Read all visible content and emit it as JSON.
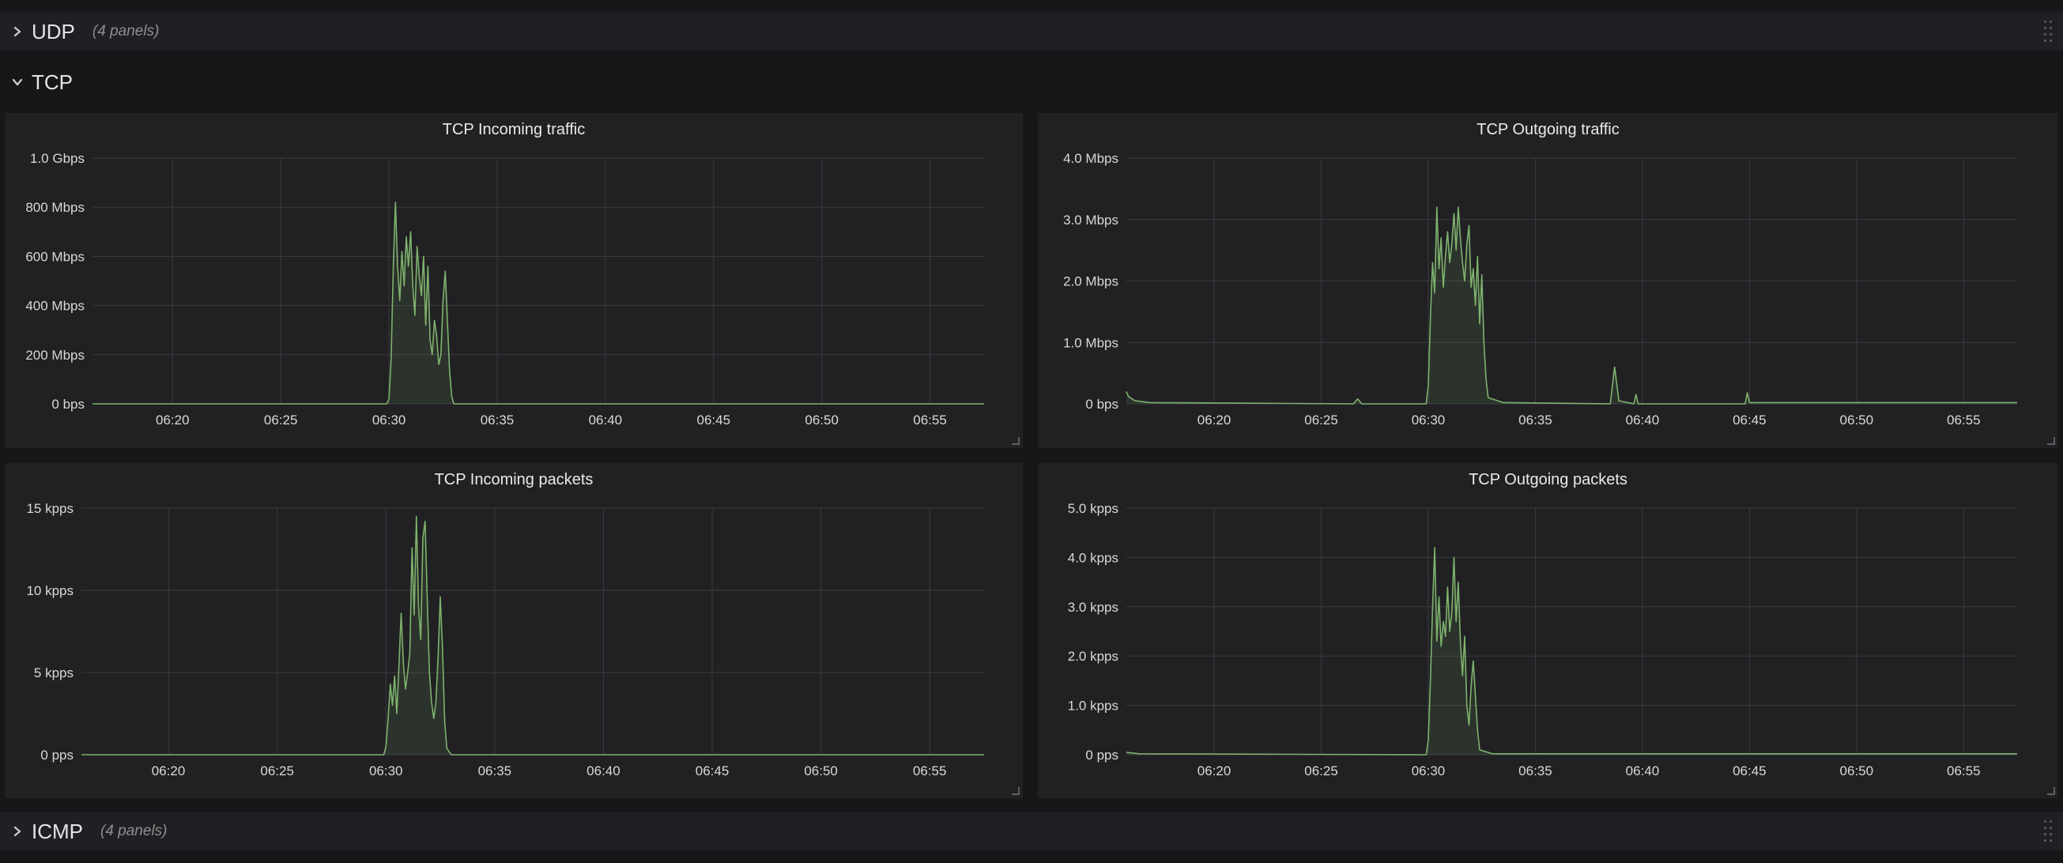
{
  "rows": {
    "udp": {
      "title": "UDP",
      "count": "(4 panels)",
      "collapsed": true
    },
    "tcp": {
      "title": "TCP",
      "collapsed": false
    },
    "icmp": {
      "title": "ICMP",
      "count": "(4 panels)",
      "collapsed": true
    }
  },
  "colors": {
    "series": "#7eb26d",
    "grid": "#3a3b3e",
    "axis_text": "#d8d9da"
  },
  "icons": {
    "collapsed": "chevron-right-icon",
    "expanded": "chevron-down-icon",
    "drag": "drag-handle-icon"
  },
  "chart_data": [
    {
      "id": "tcp-in-traffic",
      "type": "area",
      "title": "TCP Incoming traffic",
      "x_ticks": [
        "06:20",
        "06:25",
        "06:30",
        "06:35",
        "06:40",
        "06:45",
        "06:50",
        "06:55"
      ],
      "y_ticks": [
        "0 bps",
        "200 Mbps",
        "400 Mbps",
        "600 Mbps",
        "800 Mbps",
        "1.0 Gbps"
      ],
      "ylim": [
        0,
        1000
      ],
      "unit": "Mbps",
      "xlim_minutes": [
        16.3,
        57.5
      ],
      "series": [
        {
          "points": [
            [
              16.3,
              0
            ],
            [
              29.9,
              0
            ],
            [
              30.0,
              20
            ],
            [
              30.1,
              180
            ],
            [
              30.2,
              560
            ],
            [
              30.3,
              820
            ],
            [
              30.4,
              560
            ],
            [
              30.5,
              420
            ],
            [
              30.6,
              620
            ],
            [
              30.7,
              480
            ],
            [
              30.8,
              680
            ],
            [
              30.9,
              560
            ],
            [
              31.0,
              700
            ],
            [
              31.1,
              480
            ],
            [
              31.2,
              360
            ],
            [
              31.3,
              640
            ],
            [
              31.4,
              520
            ],
            [
              31.5,
              440
            ],
            [
              31.6,
              600
            ],
            [
              31.7,
              320
            ],
            [
              31.8,
              560
            ],
            [
              31.9,
              260
            ],
            [
              32.0,
              200
            ],
            [
              32.1,
              340
            ],
            [
              32.2,
              280
            ],
            [
              32.3,
              160
            ],
            [
              32.4,
              200
            ],
            [
              32.5,
              420
            ],
            [
              32.6,
              540
            ],
            [
              32.7,
              340
            ],
            [
              32.8,
              140
            ],
            [
              32.9,
              30
            ],
            [
              33.0,
              0
            ],
            [
              57.5,
              0
            ]
          ]
        }
      ]
    },
    {
      "id": "tcp-out-traffic",
      "type": "area",
      "title": "TCP Outgoing traffic",
      "x_ticks": [
        "06:20",
        "06:25",
        "06:30",
        "06:35",
        "06:40",
        "06:45",
        "06:50",
        "06:55"
      ],
      "y_ticks": [
        "0 bps",
        "1.0 Mbps",
        "2.0 Mbps",
        "3.0 Mbps",
        "4.0 Mbps"
      ],
      "ylim": [
        0,
        4
      ],
      "unit": "Mbps",
      "xlim_minutes": [
        15.9,
        57.5
      ],
      "series": [
        {
          "points": [
            [
              15.9,
              0.2
            ],
            [
              16.0,
              0.12
            ],
            [
              16.3,
              0.05
            ],
            [
              17.0,
              0.02
            ],
            [
              26.5,
              0.0
            ],
            [
              26.7,
              0.08
            ],
            [
              26.9,
              0.0
            ],
            [
              29.9,
              0.0
            ],
            [
              30.0,
              0.3
            ],
            [
              30.1,
              1.4
            ],
            [
              30.2,
              2.3
            ],
            [
              30.3,
              1.8
            ],
            [
              30.4,
              3.2
            ],
            [
              30.5,
              2.2
            ],
            [
              30.6,
              2.7
            ],
            [
              30.7,
              1.9
            ],
            [
              30.8,
              2.4
            ],
            [
              30.9,
              2.8
            ],
            [
              31.0,
              2.3
            ],
            [
              31.1,
              2.6
            ],
            [
              31.2,
              3.1
            ],
            [
              31.3,
              2.5
            ],
            [
              31.4,
              3.2
            ],
            [
              31.5,
              2.7
            ],
            [
              31.6,
              2.3
            ],
            [
              31.7,
              2.0
            ],
            [
              31.8,
              2.6
            ],
            [
              31.9,
              2.9
            ],
            [
              32.0,
              1.9
            ],
            [
              32.1,
              2.2
            ],
            [
              32.2,
              1.6
            ],
            [
              32.3,
              2.4
            ],
            [
              32.4,
              1.3
            ],
            [
              32.5,
              2.1
            ],
            [
              32.6,
              1.0
            ],
            [
              32.7,
              0.4
            ],
            [
              32.8,
              0.1
            ],
            [
              33.5,
              0.02
            ],
            [
              38.5,
              0.0
            ],
            [
              38.7,
              0.6
            ],
            [
              38.9,
              0.05
            ],
            [
              39.6,
              0.0
            ],
            [
              39.7,
              0.15
            ],
            [
              39.8,
              0.0
            ],
            [
              44.8,
              0.0
            ],
            [
              44.9,
              0.18
            ],
            [
              45.0,
              0.02
            ],
            [
              57.5,
              0.02
            ]
          ]
        }
      ]
    },
    {
      "id": "tcp-in-packets",
      "type": "area",
      "title": "TCP Incoming packets",
      "x_ticks": [
        "06:20",
        "06:25",
        "06:30",
        "06:35",
        "06:40",
        "06:45",
        "06:50",
        "06:55"
      ],
      "y_ticks": [
        "0 pps",
        "5 kpps",
        "10 kpps",
        "15 kpps"
      ],
      "ylim": [
        0,
        15
      ],
      "unit": "kpps",
      "xlim_minutes": [
        16.0,
        57.5
      ],
      "series": [
        {
          "points": [
            [
              16.0,
              0
            ],
            [
              29.9,
              0
            ],
            [
              30.0,
              0.5
            ],
            [
              30.1,
              2.2
            ],
            [
              30.2,
              4.3
            ],
            [
              30.3,
              3.0
            ],
            [
              30.4,
              4.8
            ],
            [
              30.5,
              2.5
            ],
            [
              30.6,
              5.5
            ],
            [
              30.7,
              8.6
            ],
            [
              30.8,
              5.6
            ],
            [
              30.9,
              4.0
            ],
            [
              31.0,
              5.0
            ],
            [
              31.1,
              6.2
            ],
            [
              31.2,
              12.6
            ],
            [
              31.3,
              8.5
            ],
            [
              31.4,
              14.5
            ],
            [
              31.5,
              9.0
            ],
            [
              31.6,
              7.0
            ],
            [
              31.7,
              13.2
            ],
            [
              31.8,
              14.2
            ],
            [
              31.9,
              9.5
            ],
            [
              32.0,
              5.0
            ],
            [
              32.1,
              3.2
            ],
            [
              32.2,
              2.2
            ],
            [
              32.3,
              3.2
            ],
            [
              32.4,
              6.0
            ],
            [
              32.5,
              9.6
            ],
            [
              32.6,
              6.5
            ],
            [
              32.7,
              2.0
            ],
            [
              32.8,
              0.4
            ],
            [
              33.0,
              0
            ],
            [
              57.5,
              0
            ]
          ]
        }
      ]
    },
    {
      "id": "tcp-out-packets",
      "type": "area",
      "title": "TCP Outgoing packets",
      "x_ticks": [
        "06:20",
        "06:25",
        "06:30",
        "06:35",
        "06:40",
        "06:45",
        "06:50",
        "06:55"
      ],
      "y_ticks": [
        "0 pps",
        "1.0 kpps",
        "2.0 kpps",
        "3.0 kpps",
        "4.0 kpps",
        "5.0 kpps"
      ],
      "ylim": [
        0,
        5
      ],
      "unit": "kpps",
      "xlim_minutes": [
        15.9,
        57.5
      ],
      "series": [
        {
          "points": [
            [
              15.9,
              0.05
            ],
            [
              16.5,
              0.02
            ],
            [
              29.9,
              0.0
            ],
            [
              30.0,
              0.3
            ],
            [
              30.1,
              1.5
            ],
            [
              30.2,
              3.0
            ],
            [
              30.3,
              4.2
            ],
            [
              30.4,
              2.3
            ],
            [
              30.5,
              3.2
            ],
            [
              30.6,
              2.2
            ],
            [
              30.7,
              2.7
            ],
            [
              30.8,
              2.4
            ],
            [
              30.9,
              3.4
            ],
            [
              31.0,
              2.5
            ],
            [
              31.1,
              2.9
            ],
            [
              31.2,
              4.0
            ],
            [
              31.3,
              2.7
            ],
            [
              31.4,
              3.5
            ],
            [
              31.5,
              2.3
            ],
            [
              31.6,
              1.6
            ],
            [
              31.7,
              2.4
            ],
            [
              31.8,
              1.0
            ],
            [
              31.9,
              0.6
            ],
            [
              32.0,
              1.4
            ],
            [
              32.1,
              1.9
            ],
            [
              32.2,
              1.2
            ],
            [
              32.3,
              0.5
            ],
            [
              32.4,
              0.1
            ],
            [
              33.0,
              0.02
            ],
            [
              57.5,
              0.02
            ]
          ]
        }
      ]
    }
  ]
}
